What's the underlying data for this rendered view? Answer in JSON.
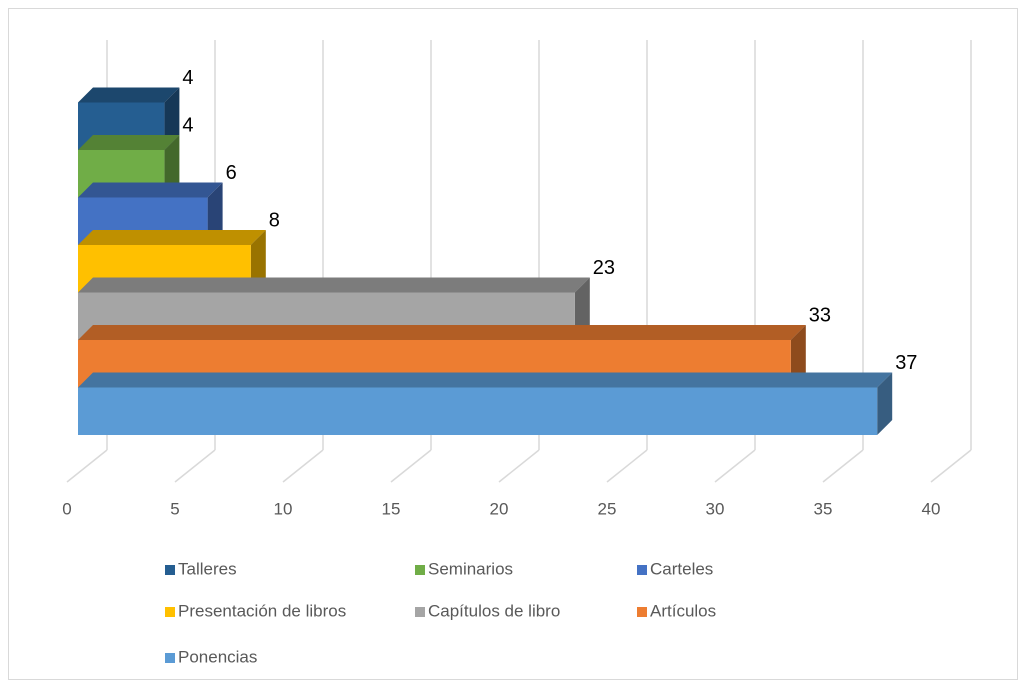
{
  "chart_data": {
    "type": "bar",
    "orientation": "horizontal",
    "series": [
      {
        "name": "Talleres",
        "color": "#255e91",
        "values": [
          4
        ]
      },
      {
        "name": "Seminarios",
        "color": "#70ad47",
        "values": [
          4
        ]
      },
      {
        "name": "Carteles",
        "color": "#4472c4",
        "values": [
          6
        ]
      },
      {
        "name": "Presentación de libros",
        "color": "#ffc000",
        "values": [
          8
        ]
      },
      {
        "name": "Capítulos de libro",
        "color": "#a5a5a5",
        "values": [
          23
        ]
      },
      {
        "name": "Artículos",
        "color": "#ed7d31",
        "values": [
          33
        ]
      },
      {
        "name": "Ponencias",
        "color": "#5b9bd5",
        "values": [
          37
        ]
      }
    ],
    "xlim": [
      0,
      40
    ],
    "xticks": [
      0,
      5,
      10,
      15,
      20,
      25,
      30,
      35,
      40
    ],
    "grid": true,
    "legend": "bottom"
  }
}
